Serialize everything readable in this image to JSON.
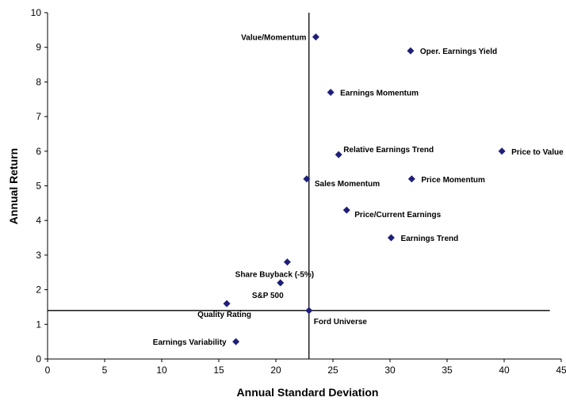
{
  "chart_data": {
    "type": "scatter",
    "title": "",
    "xlabel": "Annual Standard Deviation",
    "ylabel": "Annual Return",
    "xlim": [
      0,
      45
    ],
    "ylim": [
      0,
      10
    ],
    "x_ticks": [
      "0",
      "5",
      "10",
      "15",
      "20",
      "25",
      "30",
      "35",
      "40",
      "45"
    ],
    "y_ticks": [
      "0",
      "1",
      "2",
      "3",
      "4",
      "5",
      "6",
      "7",
      "8",
      "9",
      "10"
    ],
    "grid": false,
    "marker_color": "#1f1f7a",
    "reference_lines": {
      "vertical_x": 22.9,
      "horizontal_y": 1.4
    },
    "points": [
      {
        "label": "Value/Momentum",
        "x": 23.5,
        "y": 9.3,
        "label_side": "left"
      },
      {
        "label": "Oper. Earnings Yield",
        "x": 31.8,
        "y": 8.9,
        "label_side": "right"
      },
      {
        "label": "Earnings Momentum",
        "x": 24.8,
        "y": 7.7,
        "label_side": "right"
      },
      {
        "label": "Relative Earnings Trend",
        "x": 25.5,
        "y": 5.9,
        "label_side": "right-up"
      },
      {
        "label": "Price to Value",
        "x": 39.8,
        "y": 6.0,
        "label_side": "right"
      },
      {
        "label": "Sales Momentum",
        "x": 22.7,
        "y": 5.2,
        "label_side": "right-down"
      },
      {
        "label": "Price Momentum",
        "x": 31.9,
        "y": 5.2,
        "label_side": "right"
      },
      {
        "label": "Price/Current Earnings",
        "x": 26.2,
        "y": 4.3,
        "label_side": "right-down"
      },
      {
        "label": "Earnings Trend",
        "x": 30.1,
        "y": 3.5,
        "label_side": "right"
      },
      {
        "label": "Share Buyback (-5%)",
        "x": 21.0,
        "y": 2.8,
        "label_side": "below-left"
      },
      {
        "label": "S&P 500",
        "x": 20.4,
        "y": 2.2,
        "label_side": "below-left"
      },
      {
        "label": "Quality Rating",
        "x": 15.7,
        "y": 1.6,
        "label_side": "below"
      },
      {
        "label": "Ford Universe",
        "x": 22.9,
        "y": 1.4,
        "label_side": "below-right"
      },
      {
        "label": "Earnings Variability",
        "x": 16.5,
        "y": 0.5,
        "label_side": "left"
      }
    ]
  }
}
